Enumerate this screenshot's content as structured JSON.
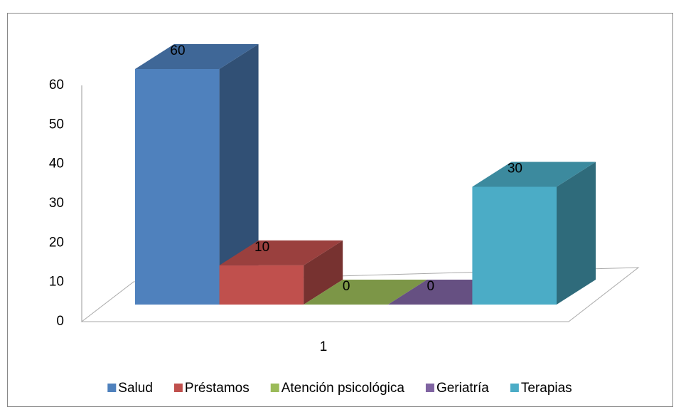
{
  "chart_data": {
    "type": "bar3d",
    "categories": [
      "1"
    ],
    "series": [
      {
        "name": "Salud",
        "color": "#4f81bd",
        "values": [
          60
        ]
      },
      {
        "name": "Préstamos",
        "color": "#c0504d",
        "values": [
          10
        ]
      },
      {
        "name": "Atención psicológica",
        "color": "#9bbb59",
        "values": [
          0
        ]
      },
      {
        "name": "Geriatría",
        "color": "#8064a2",
        "values": [
          0
        ]
      },
      {
        "name": "Terapias",
        "color": "#4bacc6",
        "values": [
          30
        ]
      }
    ],
    "ylim": [
      0,
      60
    ],
    "yticks": [
      0,
      10,
      20,
      30,
      40,
      50,
      60
    ],
    "data_labels": true,
    "legend": "bottom"
  }
}
